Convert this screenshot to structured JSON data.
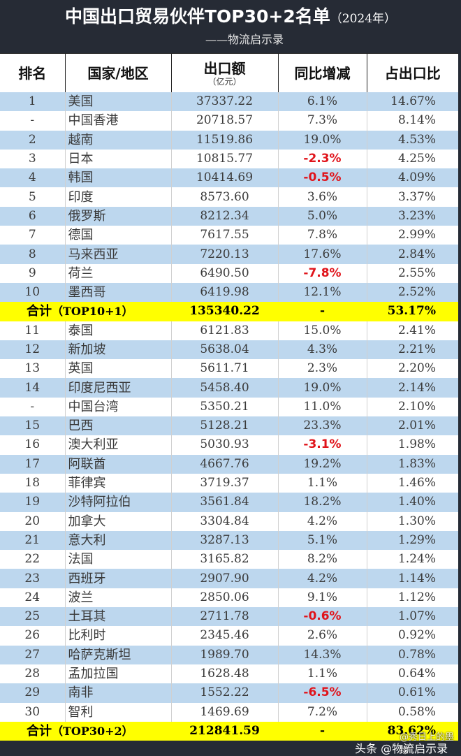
{
  "title": {
    "main": "中国出口贸易伙伴TOP30+2名单",
    "year": "（2024年）",
    "subtitle": "——物流启示录"
  },
  "columns": {
    "rank": "排名",
    "name": "国家/地区",
    "amount": "出口额",
    "amount_unit": "（亿元）",
    "change": "同比增减",
    "share": "占出口比"
  },
  "colors": {
    "header_bg": "#262b35",
    "stripe_blue": "#bdd7ee",
    "total_yellow": "#ffff00",
    "negative_red": "#e0141b"
  },
  "rows": [
    {
      "rank": "1",
      "name": "美国",
      "amount": "37337.22",
      "change": "6.1%",
      "share": "14.67%",
      "negative": false
    },
    {
      "rank": "-",
      "name": "中国香港",
      "amount": "20718.57",
      "change": "7.3%",
      "share": "8.14%",
      "negative": false
    },
    {
      "rank": "2",
      "name": "越南",
      "amount": "11519.86",
      "change": "19.0%",
      "share": "4.53%",
      "negative": false
    },
    {
      "rank": "3",
      "name": "日本",
      "amount": "10815.77",
      "change": "-2.3%",
      "share": "4.25%",
      "negative": true
    },
    {
      "rank": "4",
      "name": "韩国",
      "amount": "10414.69",
      "change": "-0.5%",
      "share": "4.09%",
      "negative": true
    },
    {
      "rank": "5",
      "name": "印度",
      "amount": "8573.60",
      "change": "3.6%",
      "share": "3.37%",
      "negative": false
    },
    {
      "rank": "6",
      "name": "俄罗斯",
      "amount": "8212.34",
      "change": "5.0%",
      "share": "3.23%",
      "negative": false
    },
    {
      "rank": "7",
      "name": "德国",
      "amount": "7617.55",
      "change": "7.8%",
      "share": "2.99%",
      "negative": false
    },
    {
      "rank": "8",
      "name": "马来西亚",
      "amount": "7220.13",
      "change": "17.6%",
      "share": "2.84%",
      "negative": false
    },
    {
      "rank": "9",
      "name": "荷兰",
      "amount": "6490.50",
      "change": "-7.8%",
      "share": "2.55%",
      "negative": true
    },
    {
      "rank": "10",
      "name": "墨西哥",
      "amount": "6419.98",
      "change": "12.1%",
      "share": "2.52%",
      "negative": false
    }
  ],
  "total_top10": {
    "label": "合计",
    "paren": "（TOP10+1）",
    "amount": "135340.22",
    "change": "-",
    "share": "53.17%"
  },
  "rows2": [
    {
      "rank": "11",
      "name": "泰国",
      "amount": "6121.83",
      "change": "15.0%",
      "share": "2.41%",
      "negative": false
    },
    {
      "rank": "12",
      "name": "新加坡",
      "amount": "5638.04",
      "change": "4.3%",
      "share": "2.21%",
      "negative": false
    },
    {
      "rank": "13",
      "name": "英国",
      "amount": "5611.71",
      "change": "2.3%",
      "share": "2.20%",
      "negative": false
    },
    {
      "rank": "14",
      "name": "印度尼西亚",
      "amount": "5458.40",
      "change": "19.0%",
      "share": "2.14%",
      "negative": false
    },
    {
      "rank": "-",
      "name": "中国台湾",
      "amount": "5350.21",
      "change": "11.0%",
      "share": "2.10%",
      "negative": false
    },
    {
      "rank": "15",
      "name": "巴西",
      "amount": "5128.21",
      "change": "23.3%",
      "share": "2.01%",
      "negative": false
    },
    {
      "rank": "16",
      "name": "澳大利亚",
      "amount": "5030.93",
      "change": "-3.1%",
      "share": "1.98%",
      "negative": true
    },
    {
      "rank": "17",
      "name": "阿联酋",
      "amount": "4667.76",
      "change": "19.2%",
      "share": "1.83%",
      "negative": false
    },
    {
      "rank": "18",
      "name": "菲律宾",
      "amount": "3719.37",
      "change": "1.1%",
      "share": "1.46%",
      "negative": false
    },
    {
      "rank": "19",
      "name": "沙特阿拉伯",
      "amount": "3561.84",
      "change": "18.2%",
      "share": "1.40%",
      "negative": false
    },
    {
      "rank": "20",
      "name": "加拿大",
      "amount": "3304.84",
      "change": "4.2%",
      "share": "1.30%",
      "negative": false
    },
    {
      "rank": "21",
      "name": "意大利",
      "amount": "3287.13",
      "change": "5.1%",
      "share": "1.29%",
      "negative": false
    },
    {
      "rank": "22",
      "name": "法国",
      "amount": "3165.82",
      "change": "8.2%",
      "share": "1.24%",
      "negative": false
    },
    {
      "rank": "23",
      "name": "西班牙",
      "amount": "2907.90",
      "change": "4.2%",
      "share": "1.14%",
      "negative": false
    },
    {
      "rank": "24",
      "name": "波兰",
      "amount": "2850.06",
      "change": "9.1%",
      "share": "1.12%",
      "negative": false
    },
    {
      "rank": "25",
      "name": "土耳其",
      "amount": "2711.78",
      "change": "-0.6%",
      "share": "1.07%",
      "negative": true
    },
    {
      "rank": "26",
      "name": "比利时",
      "amount": "2345.46",
      "change": "2.6%",
      "share": "0.92%",
      "negative": false
    },
    {
      "rank": "27",
      "name": "哈萨克斯坦",
      "amount": "1989.70",
      "change": "14.3%",
      "share": "0.78%",
      "negative": false
    },
    {
      "rank": "28",
      "name": "孟加拉国",
      "amount": "1628.48",
      "change": "1.1%",
      "share": "0.64%",
      "negative": false
    },
    {
      "rank": "29",
      "name": "南非",
      "amount": "1552.22",
      "change": "-6.5%",
      "share": "0.61%",
      "negative": true
    },
    {
      "rank": "30",
      "name": "智利",
      "amount": "1469.69",
      "change": "7.2%",
      "share": "0.58%",
      "negative": false
    }
  ],
  "total_top30": {
    "label": "合计",
    "paren": "（TOP30+2）",
    "amount": "212841.59",
    "change": "-",
    "share": "83.62%"
  },
  "watermark": {
    "line1": "@秀日上的墨缘",
    "line2": "头条 @物流启示录"
  }
}
